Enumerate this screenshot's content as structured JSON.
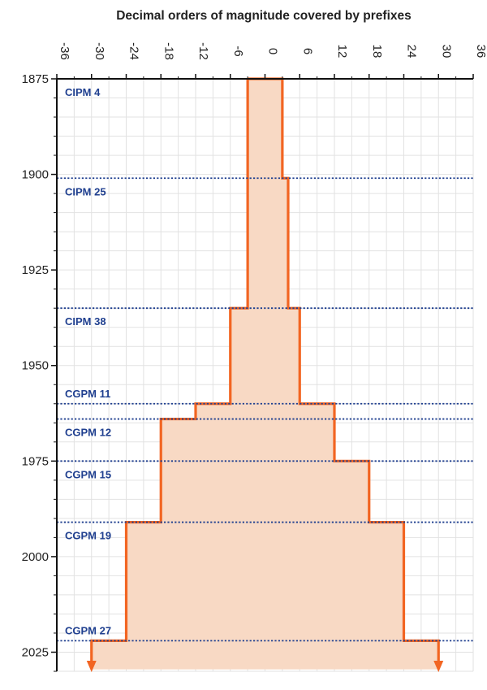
{
  "chart_data": {
    "type": "area",
    "title": "Decimal orders of magnitude covered by prefixes",
    "orientation": "horizontal-time-axis-vertical",
    "x_axis": {
      "position": "top",
      "range": [
        -36,
        36
      ],
      "ticks": [
        -36,
        -30,
        -24,
        -18,
        -12,
        -6,
        0,
        6,
        12,
        18,
        24,
        30,
        36
      ],
      "tick_labels_rotated": true
    },
    "y_axis": {
      "range": [
        1875,
        2030
      ],
      "inverted": true,
      "ticks": [
        1875,
        1900,
        1925,
        1950,
        1975,
        2000,
        2025
      ],
      "minor_tick_step": 5
    },
    "grid": true,
    "series": [
      {
        "steps": [
          {
            "year": 1875,
            "min": -3,
            "max": 3
          },
          {
            "year": 1901,
            "min": -3,
            "max": 4
          },
          {
            "year": 1935,
            "min": -6,
            "max": 6
          },
          {
            "year": 1960,
            "min": -12,
            "max": 12
          },
          {
            "year": 1964,
            "min": -18,
            "max": 12
          },
          {
            "year": 1975,
            "min": -18,
            "max": 18
          },
          {
            "year": 1991,
            "min": -24,
            "max": 24
          },
          {
            "year": 2022,
            "min": -30,
            "max": 30
          }
        ],
        "end_year": 2030,
        "fill_color": "#f8d9c4",
        "line_color": "#f26522"
      }
    ],
    "events": [
      {
        "year": 1875,
        "label": "CIPM 4"
      },
      {
        "year": 1901,
        "label": "CIPM 25"
      },
      {
        "year": 1935,
        "label": "CIPM 38"
      },
      {
        "year": 1960,
        "label": "CGPM 11"
      },
      {
        "year": 1964,
        "label": "CGPM 12"
      },
      {
        "year": 1975,
        "label": "CGPM 15"
      },
      {
        "year": 1991,
        "label": "CGPM 19"
      },
      {
        "year": 2022,
        "label": "CGPM 27"
      }
    ],
    "event_line_color": "#1f3f8f"
  }
}
